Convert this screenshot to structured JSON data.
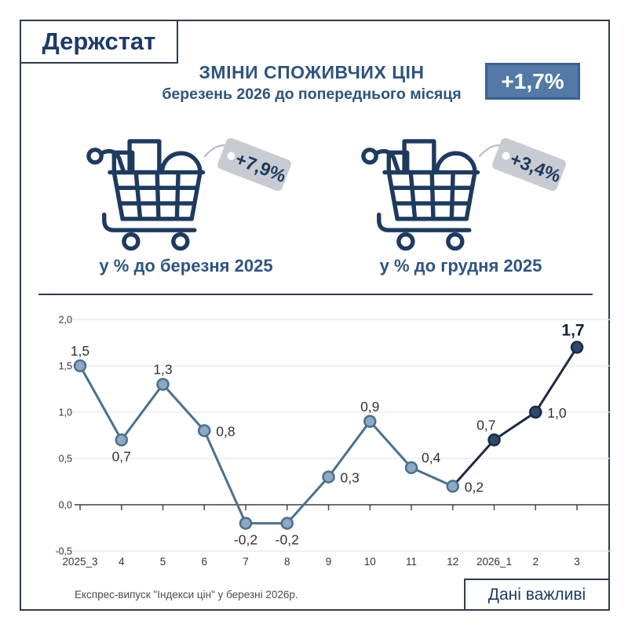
{
  "logo": {
    "label": "Держстат"
  },
  "header": {
    "title_line1": "ЗМІНИ СПОЖИВЧИХ ЦІН",
    "title_line2": "березень 2026 до попереднього місяця",
    "badge": "+1,7%",
    "badge_bg": "#537aa6",
    "badge_border": "#3a6190"
  },
  "comparisons": [
    {
      "tag": "+7,9%",
      "label": "у % до березня 2025"
    },
    {
      "tag": "+3,4%",
      "label": "у % до грудня 2025"
    }
  ],
  "chart_data": {
    "type": "line",
    "title": "",
    "xlabel": "",
    "ylabel": "",
    "categories": [
      "2025_3",
      "4",
      "5",
      "6",
      "7",
      "8",
      "9",
      "10",
      "11",
      "12",
      "2026_1",
      "2",
      "3"
    ],
    "values": [
      1.5,
      0.7,
      1.3,
      0.8,
      -0.2,
      -0.2,
      0.3,
      0.9,
      0.4,
      0.2,
      0.7,
      1.0,
      1.7
    ],
    "point_labels": [
      "1,5",
      "0,7",
      "1,3",
      "0,8",
      "-0,2",
      "-0,2",
      "0,3",
      "0,9",
      "0,4",
      "0,2",
      "0,7",
      "1,0",
      "1,7"
    ],
    "label_pos": [
      "above",
      "below",
      "above",
      "right",
      "below",
      "below",
      "right",
      "above",
      "above-right",
      "right",
      "above-left",
      "right",
      "above-last"
    ],
    "yticks": [
      2.0,
      1.5,
      1.0,
      0.5,
      0.0,
      -0.5
    ],
    "ytick_labels": [
      "2,0",
      "1,5",
      "1,0",
      "0,5",
      "0,0",
      "-0,5"
    ],
    "ylim": [
      -0.5,
      2.0
    ],
    "grid": true,
    "legend": false,
    "dark_line_from_index": 9,
    "dark_marker_from_index": 10,
    "emphasis_index": 12,
    "colors": {
      "line_light": "#4c6f8e",
      "line_dark": "#1b2b45",
      "marker_fill_light": "#8da8c2",
      "marker_stroke_light": "#4c6f8e",
      "marker_fill_dark": "#2c4a6c",
      "marker_stroke_dark": "#1b2b45",
      "gridline": "#e7e7e7",
      "axis": "#3f3f3f",
      "label_text": "#333333",
      "emphasis_text": "#14213a"
    }
  },
  "footer": {
    "note": "Експрес-випуск \"Індекси цін\" у березні 2026р.",
    "stamp": "Дані важливі"
  },
  "theme": {
    "navy": "#1e3a5f",
    "steel": "#2e547e",
    "tag_gray": "#c8ccd2",
    "frame_border": "#2e3b4b"
  }
}
